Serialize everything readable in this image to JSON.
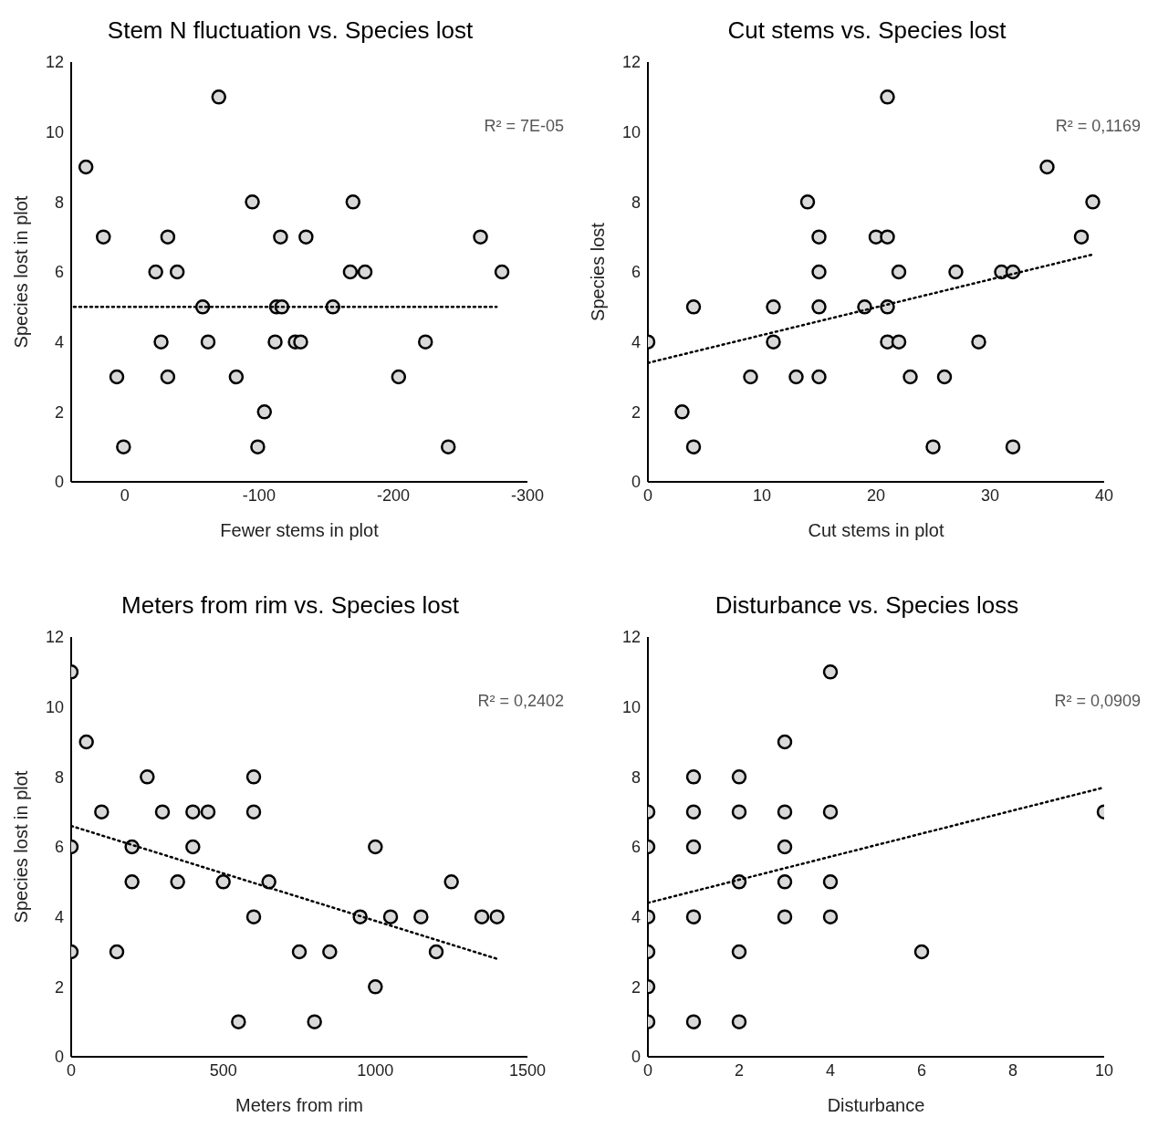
{
  "chart_data": [
    {
      "type": "scatter",
      "title": "Stem N fluctuation vs. Species lost",
      "xlabel": "Fewer stems in plot",
      "ylabel": "Species lost in plot",
      "xlim": [
        40,
        -300
      ],
      "xticks": [
        0,
        -100,
        -200,
        -300
      ],
      "ylim": [
        0,
        12
      ],
      "yticks": [
        0,
        2,
        4,
        6,
        8,
        10,
        12
      ],
      "marker": "circle",
      "annotations": [
        "R² = 7E-05"
      ],
      "series": [
        {
          "color": "#d9d9d9",
          "x": [
            29,
            16,
            6,
            1,
            -23,
            -27,
            -32,
            -32,
            -39,
            -58,
            -62,
            -70,
            -83,
            -95,
            -99,
            -104,
            -112,
            -113,
            -117,
            -116,
            -127,
            -131,
            -135,
            -155,
            -168,
            -170,
            -179,
            -204,
            -224,
            -241,
            -265,
            -281
          ],
          "values": [
            9,
            7,
            3,
            1,
            6,
            4,
            7,
            3,
            6,
            5,
            4,
            11,
            3,
            8,
            1,
            2,
            4,
            5,
            5,
            7,
            4,
            4,
            7,
            5,
            6,
            8,
            6,
            3,
            4,
            1,
            7,
            6
          ]
        },
        {
          "type": "line",
          "color": "#000000",
          "line_style": "dotted",
          "marker": "none",
          "x": [
            38,
            -277
          ],
          "values": [
            5,
            5
          ]
        }
      ]
    },
    {
      "type": "scatter",
      "title": "Cut stems vs. Species lost",
      "xlabel": "Cut stems in plot",
      "ylabel": "Species lost",
      "xlim": [
        0,
        40
      ],
      "xticks": [
        0,
        10,
        20,
        30,
        40
      ],
      "ylim": [
        0,
        12
      ],
      "yticks": [
        0,
        2,
        4,
        6,
        8,
        10,
        12
      ],
      "marker": "circle",
      "annotations": [
        "R² = 0,1169"
      ],
      "series": [
        {
          "color": "#d9d9d9",
          "x": [
            0,
            3,
            4,
            4,
            9,
            11,
            11,
            13,
            14,
            15,
            15,
            15,
            15,
            19,
            20,
            21,
            21,
            21,
            21,
            22,
            22,
            23,
            25,
            26,
            27,
            29,
            31,
            32,
            32,
            35,
            38,
            39
          ],
          "values": [
            4,
            2,
            5,
            1,
            3,
            5,
            4,
            3,
            8,
            7,
            6,
            5,
            3,
            5,
            7,
            11,
            7,
            5,
            4,
            6,
            4,
            3,
            1,
            3,
            6,
            4,
            6,
            6,
            1,
            9,
            7,
            8
          ]
        },
        {
          "type": "line",
          "color": "#000000",
          "line_style": "dotted",
          "marker": "none",
          "x": [
            0,
            39
          ],
          "values": [
            3.4,
            6.5
          ]
        }
      ]
    },
    {
      "type": "scatter",
      "title": "Meters from rim vs. Species lost",
      "xlabel": "Meters from rim",
      "ylabel": "Species lost in plot",
      "xlim": [
        0,
        1500
      ],
      "xticks": [
        0,
        500,
        1000,
        1500
      ],
      "ylim": [
        0,
        12
      ],
      "yticks": [
        0,
        2,
        4,
        6,
        8,
        10,
        12
      ],
      "marker": "circle",
      "annotations": [
        "R² = 0,2402"
      ],
      "series": [
        {
          "color": "#d9d9d9",
          "x": [
            0,
            0,
            0,
            50,
            100,
            150,
            200,
            200,
            250,
            300,
            350,
            400,
            400,
            450,
            500,
            550,
            600,
            600,
            600,
            650,
            750,
            800,
            850,
            950,
            1000,
            1000,
            1050,
            1150,
            1200,
            1250,
            1350,
            1400
          ],
          "values": [
            11,
            6,
            3,
            9,
            7,
            3,
            6,
            5,
            8,
            7,
            5,
            7,
            6,
            7,
            5,
            1,
            8,
            7,
            4,
            5,
            3,
            1,
            3,
            4,
            6,
            2,
            4,
            4,
            3,
            5,
            4,
            4
          ]
        },
        {
          "type": "line",
          "color": "#000000",
          "line_style": "dotted",
          "marker": "none",
          "x": [
            0,
            1400
          ],
          "values": [
            6.6,
            2.8
          ]
        }
      ]
    },
    {
      "type": "scatter",
      "title": "Disturbance vs. Species loss",
      "xlabel": "Disturbance",
      "xlim": [
        0,
        10
      ],
      "xticks": [
        0,
        2,
        4,
        6,
        8,
        10
      ],
      "ylim": [
        0,
        12
      ],
      "yticks": [
        0,
        2,
        4,
        6,
        8,
        10,
        12
      ],
      "marker": "circle",
      "annotations": [
        "R² = 0,0909"
      ],
      "series": [
        {
          "color": "#d9d9d9",
          "x": [
            0,
            0,
            0,
            0,
            0,
            0,
            1,
            1,
            1,
            1,
            1,
            2,
            2,
            2,
            2,
            2,
            3,
            3,
            3,
            3,
            3,
            4,
            4,
            4,
            4,
            6,
            10
          ],
          "values": [
            7,
            6,
            4,
            3,
            2,
            1,
            8,
            7,
            6,
            4,
            1,
            8,
            7,
            5,
            3,
            1,
            9,
            7,
            6,
            5,
            4,
            11,
            7,
            5,
            4,
            3,
            7
          ]
        },
        {
          "type": "line",
          "color": "#000000",
          "line_style": "dotted",
          "marker": "none",
          "x": [
            0,
            10
          ],
          "values": [
            4.4,
            7.7
          ]
        }
      ]
    }
  ]
}
